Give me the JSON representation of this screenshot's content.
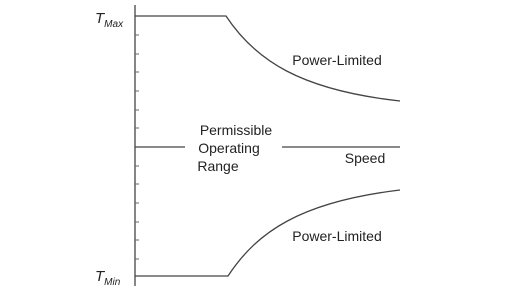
{
  "labels": {
    "t_max": {
      "symbol": "T",
      "subscript": "Max"
    },
    "t_min": {
      "symbol": "T",
      "subscript": "Min"
    },
    "upper_region": "Power-Limited",
    "lower_region": "Power-Limited",
    "operating_range": [
      "Permissible",
      "Operating",
      "Range"
    ],
    "x_axis": "Speed"
  }
}
